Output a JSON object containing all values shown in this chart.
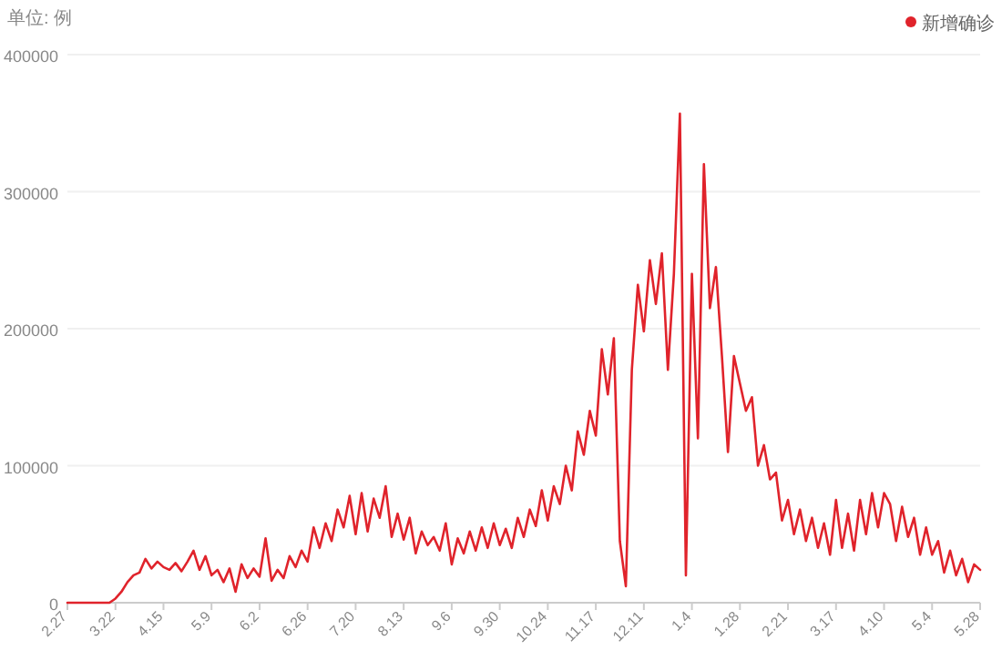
{
  "chart_data": {
    "type": "line",
    "ylabel": "单位: 例",
    "legend": "top right",
    "grid": "y",
    "marker": "none",
    "line_style": "solid",
    "ylim": [
      0,
      400000
    ],
    "yticks": [
      0,
      100000,
      200000,
      300000,
      400000
    ],
    "categories": [
      "2.27",
      null,
      null,
      null,
      null,
      null,
      null,
      null,
      "3.22",
      null,
      null,
      null,
      null,
      null,
      null,
      null,
      "4.15",
      null,
      null,
      null,
      null,
      null,
      null,
      null,
      "5.9",
      null,
      null,
      null,
      null,
      null,
      null,
      null,
      "6.2",
      null,
      null,
      null,
      null,
      null,
      null,
      null,
      "6.26",
      null,
      null,
      null,
      null,
      null,
      null,
      null,
      "7.20",
      null,
      null,
      null,
      null,
      null,
      null,
      null,
      "8.13",
      null,
      null,
      null,
      null,
      null,
      null,
      null,
      "9.6",
      null,
      null,
      null,
      null,
      null,
      null,
      null,
      "9.30",
      null,
      null,
      null,
      null,
      null,
      null,
      null,
      "10.24",
      null,
      null,
      null,
      null,
      null,
      null,
      null,
      "11.17",
      null,
      null,
      null,
      null,
      null,
      null,
      null,
      "12.11",
      null,
      null,
      null,
      null,
      null,
      null,
      null,
      "1.4",
      null,
      null,
      null,
      null,
      null,
      null,
      null,
      "1.28",
      null,
      null,
      null,
      null,
      null,
      null,
      null,
      "2.21",
      null,
      null,
      null,
      null,
      null,
      null,
      null,
      "3.17",
      null,
      null,
      null,
      null,
      null,
      null,
      null,
      "4.10",
      null,
      null,
      null,
      null,
      null,
      null,
      null,
      "5.4",
      null,
      null,
      null,
      null,
      null,
      null,
      null,
      "5.28"
    ],
    "series": [
      {
        "name": "新增确诊",
        "color": "#e0232b",
        "values": [
          0,
          0,
          0,
          0,
          0,
          0,
          0,
          0,
          3000,
          8000,
          15000,
          20000,
          22000,
          32000,
          25000,
          30000,
          26000,
          24000,
          29000,
          23000,
          30000,
          38000,
          24000,
          34000,
          20000,
          24000,
          15000,
          25000,
          8000,
          28000,
          18000,
          25000,
          19000,
          47000,
          16000,
          24000,
          18000,
          34000,
          26000,
          38000,
          30000,
          55000,
          40000,
          58000,
          45000,
          68000,
          55000,
          78000,
          50000,
          80000,
          52000,
          76000,
          62000,
          85000,
          48000,
          65000,
          46000,
          62000,
          36000,
          52000,
          42000,
          48000,
          38000,
          58000,
          28000,
          47000,
          36000,
          52000,
          38000,
          55000,
          40000,
          58000,
          42000,
          54000,
          40000,
          62000,
          48000,
          68000,
          56000,
          82000,
          60000,
          85000,
          72000,
          100000,
          82000,
          125000,
          108000,
          140000,
          122000,
          185000,
          152000,
          193000,
          45000,
          12000,
          170000,
          232000,
          198000,
          250000,
          218000,
          255000,
          170000,
          240000,
          357000,
          20000,
          240000,
          120000,
          320000,
          215000,
          245000,
          180000,
          110000,
          180000,
          160000,
          140000,
          150000,
          100000,
          115000,
          90000,
          95000,
          60000,
          75000,
          50000,
          68000,
          45000,
          62000,
          40000,
          58000,
          35000,
          75000,
          40000,
          65000,
          38000,
          75000,
          50000,
          80000,
          55000,
          80000,
          72000,
          45000,
          70000,
          48000,
          62000,
          35000,
          55000,
          35000,
          45000,
          22000,
          38000,
          20000,
          32000,
          15000,
          28000,
          24000
        ]
      }
    ]
  }
}
